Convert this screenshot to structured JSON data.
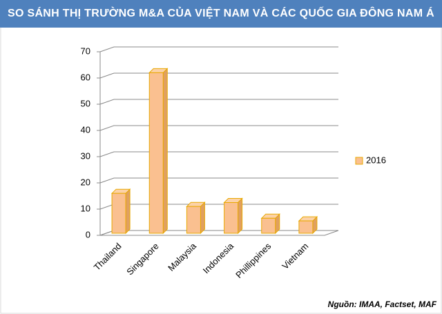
{
  "chart_data": {
    "type": "bar3d",
    "title": "SO SÁNH THỊ TRƯỜNG M&A CỦA VIỆT NAM VÀ CÁC QUỐC GIA ĐÔNG NAM Á",
    "source": "Nguồn: IMAA, Factset, MAF",
    "categories": [
      "Thailand",
      "Singapore",
      "Malaysia",
      "Indonesia",
      "Phillippines",
      "Vietnam"
    ],
    "series": [
      {
        "name": "2016",
        "color": "#fac090",
        "values": [
          16,
          62,
          11,
          12.5,
          6.5,
          5.5
        ]
      }
    ],
    "ylim": [
      0,
      70
    ],
    "yticks": [
      0,
      10,
      20,
      30,
      40,
      50,
      60,
      70
    ],
    "grid": true,
    "legend": "right"
  }
}
